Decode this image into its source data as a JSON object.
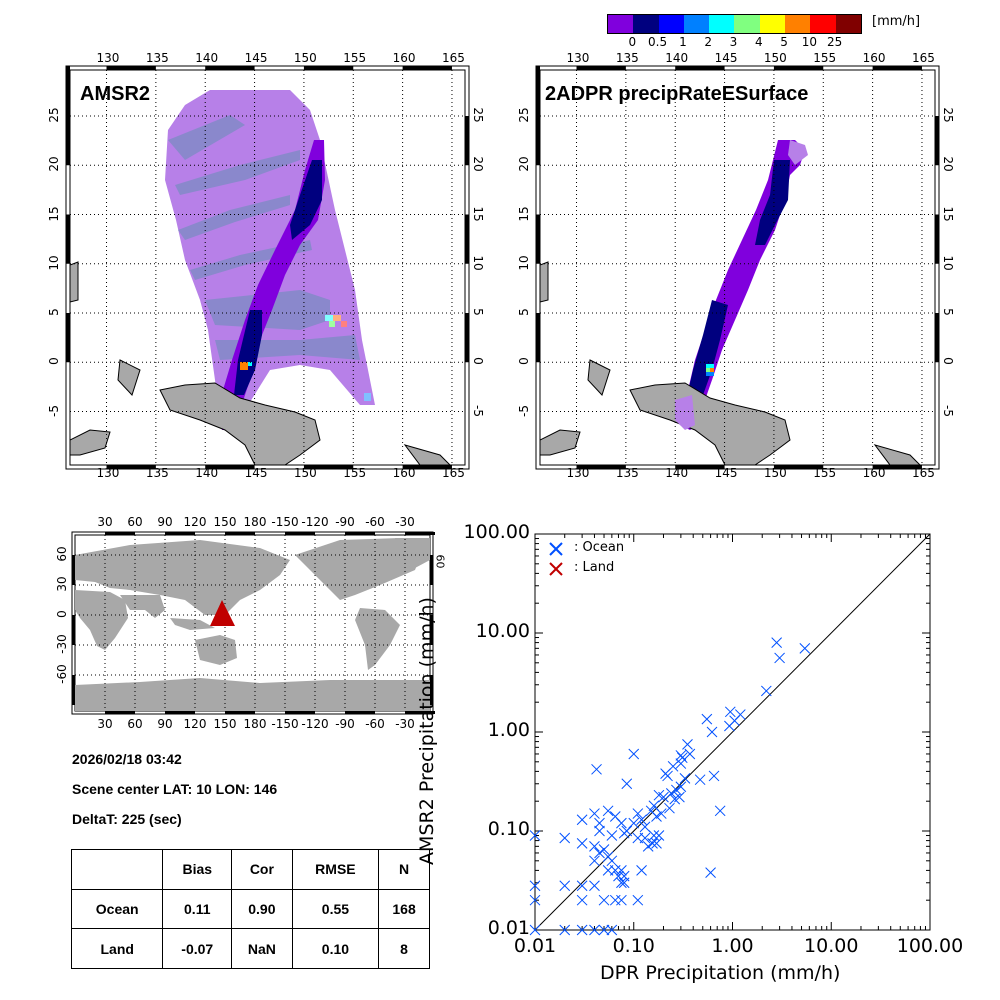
{
  "colorbar": {
    "unit": "[mm/h]",
    "ticks": [
      "0",
      "0.5",
      "1",
      "2",
      "3",
      "4",
      "5",
      "10",
      "25"
    ],
    "colors": [
      "#8000dd",
      "#00007f",
      "#0000ff",
      "#0080ff",
      "#00ffff",
      "#80ff80",
      "#ffff00",
      "#ff8000",
      "#ff0000",
      "#800000"
    ]
  },
  "maps": [
    {
      "title": "AMSR2",
      "lon_ticks": [
        "130",
        "135",
        "140",
        "145",
        "150",
        "155",
        "160",
        "165"
      ],
      "lat_ticks": [
        "25",
        "20",
        "15",
        "10",
        "5",
        "0",
        "-5"
      ]
    },
    {
      "title": "2ADPR precipRateESurface",
      "lon_ticks": [
        "130",
        "135",
        "140",
        "145",
        "150",
        "155",
        "160",
        "165"
      ],
      "lat_ticks": [
        "25",
        "20",
        "15",
        "10",
        "5",
        "0",
        "-5"
      ]
    }
  ],
  "world_map": {
    "lon_ticks": [
      "30",
      "60",
      "90",
      "120",
      "150",
      "180",
      "-150",
      "-120",
      "-90",
      "-60",
      "-30"
    ],
    "lat_ticks": [
      "60",
      "30",
      "0",
      "-30",
      "-60"
    ],
    "marker": {
      "lat": 10,
      "lon": 146,
      "color": "#c00000"
    }
  },
  "info": {
    "datetime": "2026/02/18 03:42",
    "scene_center": "Scene center LAT: 10   LON: 146",
    "delta_t": "DeltaT:  225 (sec)"
  },
  "stats_table": {
    "headers": [
      "",
      "Bias",
      "Cor",
      "RMSE",
      "N"
    ],
    "rows": [
      [
        "Ocean",
        "0.11",
        "0.90",
        "0.55",
        "168"
      ],
      [
        "Land",
        "-0.07",
        "NaN",
        "0.10",
        "8"
      ]
    ]
  },
  "chart_data": {
    "type": "scatter",
    "title": "",
    "xlabel": "DPR Precipitation (mm/h)",
    "ylabel": "AMSR2 Precipitation (mm/h)",
    "xscale": "log",
    "yscale": "log",
    "xlim": [
      0.01,
      100
    ],
    "ylim": [
      0.01,
      100
    ],
    "x_tick_labels": [
      "0.01",
      "0.10",
      "1.00",
      "10.00",
      "100.00"
    ],
    "y_tick_labels": [
      "0.01",
      "0.10",
      "1.00",
      "10.00",
      "100.00"
    ],
    "legend": {
      "placement": "top-left",
      "entries": [
        {
          "label": ": Ocean",
          "color": "#0050ff"
        },
        {
          "label": ": Land",
          "color": "#c00000"
        }
      ]
    },
    "reference_line": "1:1",
    "series": [
      {
        "name": "Ocean",
        "color": "#0050ff",
        "points": [
          [
            2.8,
            8.0
          ],
          [
            3.0,
            5.6
          ],
          [
            5.4,
            7.0
          ],
          [
            2.2,
            2.6
          ],
          [
            0.55,
            1.35
          ],
          [
            0.62,
            1.0
          ],
          [
            0.95,
            1.6
          ],
          [
            1.05,
            1.3
          ],
          [
            1.2,
            1.5
          ],
          [
            0.93,
            1.15
          ],
          [
            0.35,
            0.75
          ],
          [
            0.37,
            0.6
          ],
          [
            0.3,
            0.58
          ],
          [
            0.31,
            0.55
          ],
          [
            0.25,
            0.45
          ],
          [
            0.3,
            0.48
          ],
          [
            0.1,
            0.6
          ],
          [
            0.042,
            0.42
          ],
          [
            0.21,
            0.38
          ],
          [
            0.22,
            0.36
          ],
          [
            0.33,
            0.34
          ],
          [
            0.47,
            0.33
          ],
          [
            0.65,
            0.36
          ],
          [
            0.18,
            0.23
          ],
          [
            0.2,
            0.22
          ],
          [
            0.24,
            0.24
          ],
          [
            0.27,
            0.26
          ],
          [
            0.3,
            0.28
          ],
          [
            0.085,
            0.3
          ],
          [
            0.15,
            0.16
          ],
          [
            0.16,
            0.18
          ],
          [
            0.17,
            0.14
          ],
          [
            0.19,
            0.15
          ],
          [
            0.23,
            0.17
          ],
          [
            0.26,
            0.21
          ],
          [
            0.29,
            0.22
          ],
          [
            0.11,
            0.15
          ],
          [
            0.12,
            0.13
          ],
          [
            0.1,
            0.12
          ],
          [
            0.13,
            0.11
          ],
          [
            0.055,
            0.16
          ],
          [
            0.045,
            0.12
          ],
          [
            0.04,
            0.15
          ],
          [
            0.045,
            0.1
          ],
          [
            0.065,
            0.14
          ],
          [
            0.06,
            0.09
          ],
          [
            0.075,
            0.12
          ],
          [
            0.08,
            0.095
          ],
          [
            0.085,
            0.1
          ],
          [
            0.03,
            0.13
          ],
          [
            0.03,
            0.075
          ],
          [
            0.04,
            0.07
          ],
          [
            0.045,
            0.06
          ],
          [
            0.05,
            0.065
          ],
          [
            0.055,
            0.055
          ],
          [
            0.06,
            0.05
          ],
          [
            0.04,
            0.05
          ],
          [
            0.055,
            0.04
          ],
          [
            0.065,
            0.04
          ],
          [
            0.07,
            0.035
          ],
          [
            0.075,
            0.04
          ],
          [
            0.08,
            0.035
          ],
          [
            0.075,
            0.03
          ],
          [
            0.08,
            0.03
          ],
          [
            0.12,
            0.04
          ],
          [
            0.13,
            0.085
          ],
          [
            0.11,
            0.085
          ],
          [
            0.14,
            0.07
          ],
          [
            0.155,
            0.075
          ],
          [
            0.16,
            0.09
          ],
          [
            0.18,
            0.09
          ],
          [
            0.17,
            0.075
          ],
          [
            0.6,
            0.038
          ],
          [
            0.75,
            0.16
          ],
          [
            0.02,
            0.085
          ],
          [
            0.01,
            0.09
          ],
          [
            0.01,
            0.028
          ],
          [
            0.01,
            0.02
          ],
          [
            0.02,
            0.028
          ],
          [
            0.03,
            0.028
          ],
          [
            0.04,
            0.028
          ],
          [
            0.03,
            0.02
          ],
          [
            0.05,
            0.02
          ],
          [
            0.065,
            0.02
          ],
          [
            0.075,
            0.02
          ],
          [
            0.11,
            0.02
          ],
          [
            0.01,
            0.01
          ],
          [
            0.02,
            0.01
          ],
          [
            0.03,
            0.01
          ],
          [
            0.04,
            0.01
          ],
          [
            0.05,
            0.01
          ],
          [
            0.06,
            0.01
          ]
        ]
      },
      {
        "name": "Land",
        "color": "#c00000",
        "points": []
      }
    ]
  }
}
